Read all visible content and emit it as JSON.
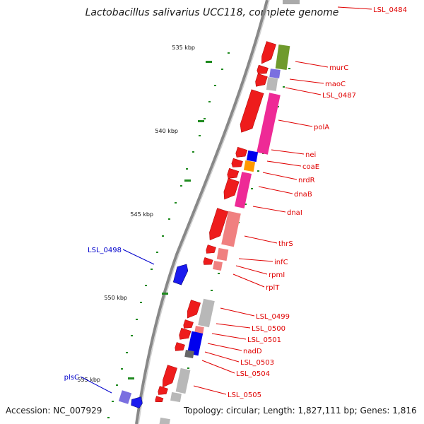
{
  "title": "Lactobacillus salivarius UCC118, complete genome",
  "footer": {
    "accession": "Accession: NC_007929",
    "topology": "Topology: circular; Length: 1,827,111 bp; Genes: 1,816"
  },
  "colors": {
    "forward_gene": "#ee1c1c",
    "reverse_gene": "#1a1aee",
    "backbone": "#888888",
    "gc_tick": "#1f8a1f",
    "label_red": "#e00000",
    "label_blue": "#0000cc",
    "cog_pink": "#ee2a96",
    "cog_olive": "#6f9a2c",
    "cog_gray": "#b8b8b8",
    "cog_salmon": "#f08080",
    "cog_blue": "#0000ee",
    "cog_orange": "#ff9900"
  },
  "ticks": [
    {
      "label": "535 kbp"
    },
    {
      "label": "540 kbp"
    },
    {
      "label": "545 kbp"
    },
    {
      "label": "550 kbp"
    },
    {
      "label": "555 kbp"
    }
  ],
  "gene_labels": [
    {
      "label": "LSL_0484",
      "strand": "forward"
    },
    {
      "label": "murC",
      "strand": "forward"
    },
    {
      "label": "maoC",
      "strand": "forward"
    },
    {
      "label": "LSL_0487",
      "strand": "forward"
    },
    {
      "label": "polA",
      "strand": "forward"
    },
    {
      "label": "nei",
      "strand": "forward"
    },
    {
      "label": "coaE",
      "strand": "forward"
    },
    {
      "label": "nrdR",
      "strand": "forward"
    },
    {
      "label": "dnaB",
      "strand": "forward"
    },
    {
      "label": "dnaI",
      "strand": "forward"
    },
    {
      "label": "thrS",
      "strand": "forward"
    },
    {
      "label": "infC",
      "strand": "forward"
    },
    {
      "label": "rpmI",
      "strand": "forward"
    },
    {
      "label": "rplT",
      "strand": "forward"
    },
    {
      "label": "LSL_0499",
      "strand": "forward"
    },
    {
      "label": "LSL_0500",
      "strand": "forward"
    },
    {
      "label": "LSL_0501",
      "strand": "forward"
    },
    {
      "label": "nadD",
      "strand": "forward"
    },
    {
      "label": "LSL_0503",
      "strand": "forward"
    },
    {
      "label": "LSL_0504",
      "strand": "forward"
    },
    {
      "label": "LSL_0505",
      "strand": "forward"
    },
    {
      "label": "LSL_0498",
      "strand": "reverse"
    },
    {
      "label": "plsC",
      "strand": "reverse"
    }
  ]
}
